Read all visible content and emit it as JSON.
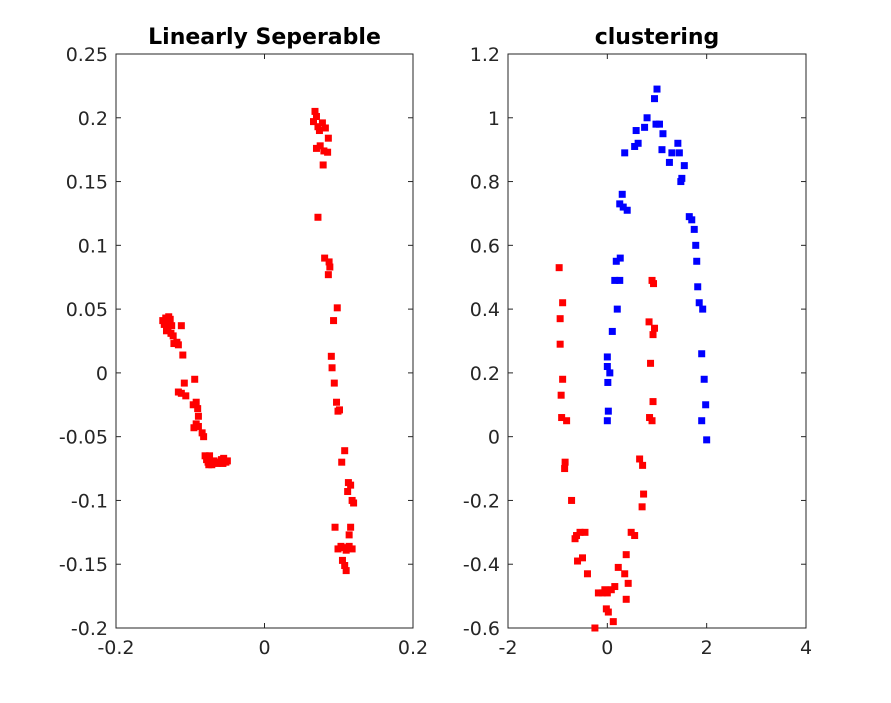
{
  "chart_data": [
    {
      "type": "scatter",
      "title": "Linearly Seperable",
      "xlabel": "",
      "ylabel": "",
      "xlim": [
        -0.2,
        0.2
      ],
      "ylim": [
        -0.2,
        0.25
      ],
      "xticks": [
        "-0.2",
        "0",
        "0.2"
      ],
      "yticks": [
        "0.25",
        "0.2",
        "0.15",
        "0.1",
        "0.05",
        "0",
        "-0.05",
        "-0.1",
        "-0.15",
        "-0.2"
      ],
      "grid": false,
      "marker": "square",
      "series": [
        {
          "color": "#ff0000",
          "points": [
            [
              -0.137,
              0.041
            ],
            [
              -0.135,
              0.038
            ],
            [
              -0.133,
              0.043
            ],
            [
              -0.131,
              0.04
            ],
            [
              -0.13,
              0.036
            ],
            [
              -0.129,
              0.044
            ],
            [
              -0.128,
              0.039
            ],
            [
              -0.127,
              0.042
            ],
            [
              -0.132,
              0.033
            ],
            [
              -0.126,
              0.031
            ],
            [
              -0.125,
              0.037
            ],
            [
              -0.123,
              0.029
            ],
            [
              -0.122,
              0.023
            ],
            [
              -0.118,
              0.024
            ],
            [
              -0.116,
              0.022
            ],
            [
              -0.112,
              0.037
            ],
            [
              -0.11,
              0.014
            ],
            [
              -0.108,
              -0.008
            ],
            [
              -0.116,
              -0.015
            ],
            [
              -0.112,
              -0.016
            ],
            [
              -0.106,
              -0.018
            ],
            [
              -0.094,
              -0.005
            ],
            [
              -0.092,
              -0.023
            ],
            [
              -0.096,
              -0.025
            ],
            [
              -0.09,
              -0.028
            ],
            [
              -0.089,
              -0.034
            ],
            [
              -0.092,
              -0.04
            ],
            [
              -0.095,
              -0.043
            ],
            [
              -0.089,
              -0.042
            ],
            [
              -0.084,
              -0.047
            ],
            [
              -0.082,
              -0.05
            ],
            [
              -0.08,
              -0.065
            ],
            [
              -0.078,
              -0.068
            ],
            [
              -0.076,
              -0.07
            ],
            [
              -0.074,
              -0.065
            ],
            [
              -0.071,
              -0.072
            ],
            [
              -0.068,
              -0.069
            ],
            [
              -0.064,
              -0.071
            ],
            [
              -0.061,
              -0.07
            ],
            [
              -0.058,
              -0.068
            ],
            [
              -0.055,
              -0.067
            ],
            [
              -0.052,
              -0.07
            ],
            [
              -0.05,
              -0.069
            ],
            [
              -0.056,
              -0.071
            ],
            [
              -0.075,
              -0.072
            ],
            [
              0.066,
              0.197
            ],
            [
              0.068,
              0.205
            ],
            [
              0.07,
              0.201
            ],
            [
              0.072,
              0.193
            ],
            [
              0.074,
              0.19
            ],
            [
              0.078,
              0.196
            ],
            [
              0.082,
              0.192
            ],
            [
              0.086,
              0.184
            ],
            [
              0.07,
              0.176
            ],
            [
              0.075,
              0.178
            ],
            [
              0.08,
              0.174
            ],
            [
              0.085,
              0.173
            ],
            [
              0.079,
              0.163
            ],
            [
              0.072,
              0.122
            ],
            [
              0.081,
              0.09
            ],
            [
              0.087,
              0.087
            ],
            [
              0.088,
              0.083
            ],
            [
              0.086,
              0.077
            ],
            [
              0.098,
              0.051
            ],
            [
              0.093,
              0.041
            ],
            [
              0.09,
              0.013
            ],
            [
              0.091,
              0.004
            ],
            [
              0.094,
              -0.008
            ],
            [
              0.097,
              -0.023
            ],
            [
              0.099,
              -0.03
            ],
            [
              0.101,
              -0.029
            ],
            [
              0.108,
              -0.061
            ],
            [
              0.104,
              -0.07
            ],
            [
              0.113,
              -0.086
            ],
            [
              0.116,
              -0.088
            ],
            [
              0.112,
              -0.093
            ],
            [
              0.118,
              -0.1
            ],
            [
              0.12,
              -0.102
            ],
            [
              0.095,
              -0.121
            ],
            [
              0.116,
              -0.121
            ],
            [
              0.114,
              -0.127
            ],
            [
              0.099,
              -0.138
            ],
            [
              0.103,
              -0.136
            ],
            [
              0.107,
              -0.137
            ],
            [
              0.11,
              -0.139
            ],
            [
              0.114,
              -0.136
            ],
            [
              0.118,
              -0.138
            ],
            [
              0.105,
              -0.147
            ],
            [
              0.108,
              -0.151
            ],
            [
              0.11,
              -0.155
            ]
          ]
        }
      ]
    },
    {
      "type": "scatter",
      "title": "clustering",
      "xlabel": "",
      "ylabel": "",
      "xlim": [
        -2,
        4
      ],
      "ylim": [
        -0.6,
        1.2
      ],
      "xticks": [
        "-2",
        "0",
        "2",
        "4"
      ],
      "yticks": [
        "1.2",
        "1",
        "0.8",
        "0.6",
        "0.4",
        "0.2",
        "0",
        "-0.2",
        "-0.4",
        "-0.6"
      ],
      "grid": false,
      "marker": "square",
      "series": [
        {
          "color": "#ff0000",
          "points": [
            [
              -0.97,
              0.53
            ],
            [
              -0.9,
              0.42
            ],
            [
              -0.95,
              0.37
            ],
            [
              -0.95,
              0.29
            ],
            [
              -0.9,
              0.18
            ],
            [
              -0.93,
              0.13
            ],
            [
              -0.92,
              0.06
            ],
            [
              -0.82,
              0.05
            ],
            [
              -0.85,
              -0.08
            ],
            [
              -0.86,
              -0.1
            ],
            [
              -0.72,
              -0.2
            ],
            [
              -0.62,
              -0.31
            ],
            [
              -0.65,
              -0.32
            ],
            [
              -0.55,
              -0.3
            ],
            [
              -0.6,
              -0.39
            ],
            [
              -0.5,
              -0.38
            ],
            [
              -0.45,
              -0.3
            ],
            [
              -0.4,
              -0.43
            ],
            [
              -0.25,
              -0.6
            ],
            [
              -0.18,
              -0.49
            ],
            [
              -0.1,
              -0.49
            ],
            [
              -0.05,
              -0.48
            ],
            [
              0.0,
              -0.49
            ],
            [
              -0.02,
              -0.54
            ],
            [
              0.02,
              -0.55
            ],
            [
              0.08,
              -0.48
            ],
            [
              0.15,
              -0.47
            ],
            [
              0.12,
              -0.58
            ],
            [
              0.22,
              -0.41
            ],
            [
              0.35,
              -0.43
            ],
            [
              0.42,
              -0.46
            ],
            [
              0.38,
              -0.51
            ],
            [
              0.38,
              -0.37
            ],
            [
              0.48,
              -0.3
            ],
            [
              0.55,
              -0.31
            ],
            [
              0.65,
              -0.07
            ],
            [
              0.71,
              -0.09
            ],
            [
              0.73,
              -0.18
            ],
            [
              0.7,
              -0.22
            ],
            [
              0.85,
              0.06
            ],
            [
              0.9,
              0.05
            ],
            [
              0.87,
              0.23
            ],
            [
              0.92,
              0.11
            ],
            [
              0.84,
              0.36
            ],
            [
              0.95,
              0.34
            ],
            [
              0.92,
              0.32
            ],
            [
              0.9,
              0.49
            ],
            [
              0.93,
              0.48
            ]
          ]
        },
        {
          "color": "#0000ff",
          "points": [
            [
              0.0,
              0.05
            ],
            [
              0.02,
              0.08
            ],
            [
              0.01,
              0.17
            ],
            [
              0.0,
              0.22
            ],
            [
              0.05,
              0.2
            ],
            [
              0.0,
              0.25
            ],
            [
              0.1,
              0.33
            ],
            [
              0.2,
              0.4
            ],
            [
              0.15,
              0.49
            ],
            [
              0.25,
              0.49
            ],
            [
              0.18,
              0.55
            ],
            [
              0.26,
              0.56
            ],
            [
              0.25,
              0.73
            ],
            [
              0.32,
              0.72
            ],
            [
              0.3,
              0.76
            ],
            [
              0.4,
              0.71
            ],
            [
              0.35,
              0.89
            ],
            [
              0.55,
              0.91
            ],
            [
              0.62,
              0.92
            ],
            [
              0.58,
              0.96
            ],
            [
              0.75,
              0.97
            ],
            [
              0.8,
              1.0
            ],
            [
              0.95,
              1.06
            ],
            [
              1.0,
              1.09
            ],
            [
              0.98,
              0.98
            ],
            [
              1.05,
              0.98
            ],
            [
              1.1,
              0.9
            ],
            [
              1.12,
              0.95
            ],
            [
              1.25,
              0.86
            ],
            [
              1.3,
              0.89
            ],
            [
              1.42,
              0.92
            ],
            [
              1.45,
              0.89
            ],
            [
              1.5,
              0.81
            ],
            [
              1.55,
              0.85
            ],
            [
              1.48,
              0.8
            ],
            [
              1.65,
              0.69
            ],
            [
              1.7,
              0.68
            ],
            [
              1.75,
              0.65
            ],
            [
              1.78,
              0.6
            ],
            [
              1.8,
              0.55
            ],
            [
              1.82,
              0.47
            ],
            [
              1.85,
              0.42
            ],
            [
              1.92,
              0.4
            ],
            [
              1.9,
              0.26
            ],
            [
              1.95,
              0.18
            ],
            [
              1.98,
              0.1
            ],
            [
              1.9,
              0.05
            ],
            [
              2.0,
              -0.01
            ]
          ]
        }
      ]
    }
  ]
}
